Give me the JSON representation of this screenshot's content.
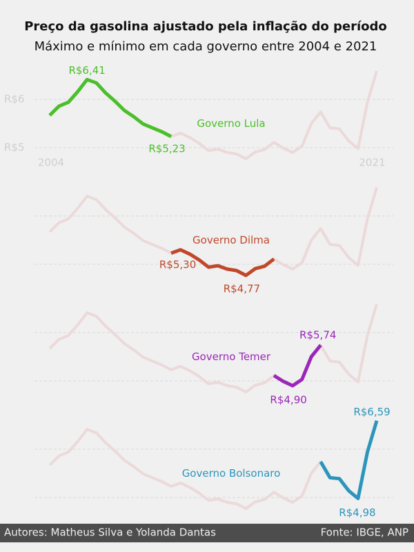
{
  "chart_data": {
    "type": "line",
    "title": "Preço da gasolina ajustado pela inflação do período",
    "subtitle": "Máximo e mínimo em cada governo entre 2004 e 2021",
    "x": [
      2004,
      2004.5,
      2005,
      2005.5,
      2006,
      2006.5,
      2007,
      2007.5,
      2008,
      2008.5,
      2009,
      2009.5,
      2010,
      2010.5,
      2011,
      2011.5,
      2012,
      2012.5,
      2013,
      2013.5,
      2014,
      2014.5,
      2015,
      2015.5,
      2016,
      2016.5,
      2017,
      2017.5,
      2018,
      2018.5,
      2019,
      2019.5,
      2020,
      2020.5,
      2021,
      2021.5
    ],
    "xlim": [
      2004,
      2021.5
    ],
    "xticks": [
      2004,
      2021
    ],
    "ylim": [
      4.6,
      6.75
    ],
    "yticks": [
      {
        "value": 5,
        "label": "R$5"
      },
      {
        "value": 6,
        "label": "R$6"
      }
    ],
    "grid": true,
    "reference": {
      "color": "#ecd9d9",
      "values": [
        5.67,
        5.86,
        5.94,
        6.16,
        6.41,
        6.34,
        6.13,
        5.96,
        5.77,
        5.64,
        5.49,
        5.41,
        5.33,
        5.23,
        5.3,
        5.21,
        5.09,
        4.94,
        4.97,
        4.9,
        4.87,
        4.77,
        4.91,
        4.96,
        5.11,
        4.99,
        4.9,
        5.03,
        5.5,
        5.74,
        5.41,
        5.39,
        5.14,
        4.98,
        5.94,
        6.59
      ]
    },
    "series": [
      {
        "name": "Governo Lula",
        "color": "#4bbf2a",
        "values": [
          5.67,
          5.86,
          5.94,
          6.16,
          6.41,
          6.34,
          6.13,
          5.96,
          5.77,
          5.64,
          5.49,
          5.41,
          5.33,
          5.23,
          null,
          null,
          null,
          null,
          null,
          null,
          null,
          null,
          null,
          null,
          null,
          null,
          null,
          null,
          null,
          null,
          null,
          null,
          null,
          null,
          null,
          null
        ],
        "value_labels": [
          null,
          null,
          null,
          null,
          "R$6,41",
          null,
          null,
          null,
          null,
          null,
          null,
          null,
          null,
          "R$5,23",
          null,
          null,
          null,
          null,
          null,
          null,
          null,
          null,
          null,
          null,
          null,
          null,
          null,
          null,
          null,
          null,
          null,
          null,
          null,
          null,
          null,
          null
        ]
      },
      {
        "name": "Governo Dilma",
        "color": "#c0472a",
        "values": [
          null,
          null,
          null,
          null,
          null,
          null,
          null,
          null,
          null,
          null,
          null,
          null,
          null,
          5.23,
          5.3,
          5.21,
          5.09,
          4.94,
          4.97,
          4.9,
          4.87,
          4.77,
          4.91,
          4.96,
          5.11,
          null,
          null,
          null,
          null,
          null,
          null,
          null,
          null,
          null,
          null,
          null
        ],
        "value_labels": [
          null,
          null,
          null,
          null,
          null,
          null,
          null,
          null,
          null,
          null,
          null,
          null,
          null,
          null,
          "R$5,30",
          null,
          null,
          null,
          null,
          null,
          null,
          "R$4,77",
          null,
          null,
          null,
          null,
          null,
          null,
          null,
          null,
          null,
          null,
          null,
          null,
          null,
          null
        ]
      },
      {
        "name": "Governo Temer",
        "color": "#9b27b8",
        "values": [
          null,
          null,
          null,
          null,
          null,
          null,
          null,
          null,
          null,
          null,
          null,
          null,
          null,
          null,
          null,
          null,
          null,
          null,
          null,
          null,
          null,
          null,
          null,
          null,
          5.11,
          4.99,
          4.9,
          5.03,
          5.5,
          5.74,
          null,
          null,
          null,
          null,
          null,
          null
        ],
        "value_labels": [
          null,
          null,
          null,
          null,
          null,
          null,
          null,
          null,
          null,
          null,
          null,
          null,
          null,
          null,
          null,
          null,
          null,
          null,
          null,
          null,
          null,
          null,
          null,
          null,
          null,
          null,
          "R$4,90",
          null,
          null,
          "R$5,74",
          null,
          null,
          null,
          null,
          null,
          null
        ]
      },
      {
        "name": "Governo Bolsonaro",
        "color": "#2b95bb",
        "values": [
          null,
          null,
          null,
          null,
          null,
          null,
          null,
          null,
          null,
          null,
          null,
          null,
          null,
          null,
          null,
          null,
          null,
          null,
          null,
          null,
          null,
          null,
          null,
          null,
          null,
          null,
          null,
          null,
          null,
          5.74,
          5.41,
          5.39,
          5.14,
          4.98,
          5.94,
          6.59
        ],
        "value_labels": [
          null,
          null,
          null,
          null,
          null,
          null,
          null,
          null,
          null,
          null,
          null,
          null,
          null,
          null,
          null,
          null,
          null,
          null,
          null,
          null,
          null,
          null,
          null,
          null,
          null,
          null,
          null,
          null,
          null,
          null,
          null,
          null,
          null,
          "R$4,98",
          null,
          "R$6,59"
        ]
      }
    ]
  },
  "footer": {
    "authors": "Autores: Matheus Silva e Yolanda Dantas",
    "source": "Fonte: IBGE, ANP"
  }
}
